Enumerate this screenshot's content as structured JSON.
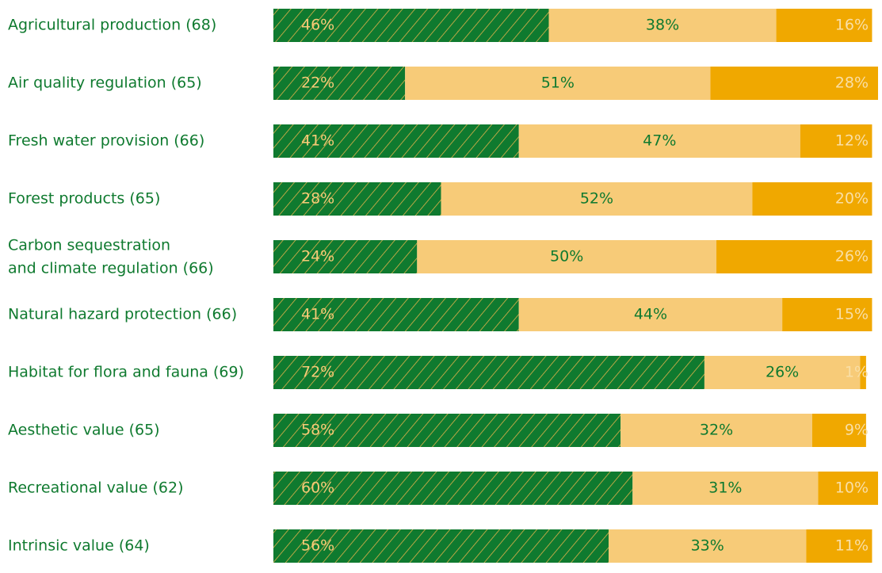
{
  "chart_data": {
    "type": "stacked-bar",
    "categories": [
      "Agricultural production (68)",
      "Air quality regulation (65)",
      "Fresh water provision (66)",
      "Forest products (65)",
      "Carbon sequestration\nand climate regulation (66)",
      "Natural hazard protection (66)",
      "Habitat for flora and fauna (69)",
      "Aesthetic value (65)",
      "Recreational value (62)",
      "Intrinsic value (64)"
    ],
    "series": [
      {
        "color": "#0f7a2f",
        "values": [
          46,
          22,
          41,
          28,
          24,
          41,
          72,
          58,
          60,
          56
        ],
        "value_labels": [
          "46%",
          "22%",
          "41%",
          "28%",
          "24%",
          "41%",
          "72%",
          "58%",
          "60%",
          "56%"
        ]
      },
      {
        "color": "#f7cb78",
        "values": [
          38,
          51,
          47,
          52,
          50,
          44,
          26,
          32,
          31,
          33
        ],
        "value_labels": [
          "38%",
          "51%",
          "47%",
          "52%",
          "50%",
          "44%",
          "26%",
          "32%",
          "31%",
          "33%"
        ]
      },
      {
        "color": "#f0a800",
        "values": [
          16,
          28,
          12,
          20,
          26,
          15,
          1,
          9,
          10,
          11
        ],
        "value_labels": [
          "16%",
          "28%",
          "12%",
          "20%",
          "26%",
          "15%",
          "1%",
          "9%",
          "10%",
          "11%"
        ]
      }
    ],
    "xlim": [
      0,
      101
    ]
  }
}
